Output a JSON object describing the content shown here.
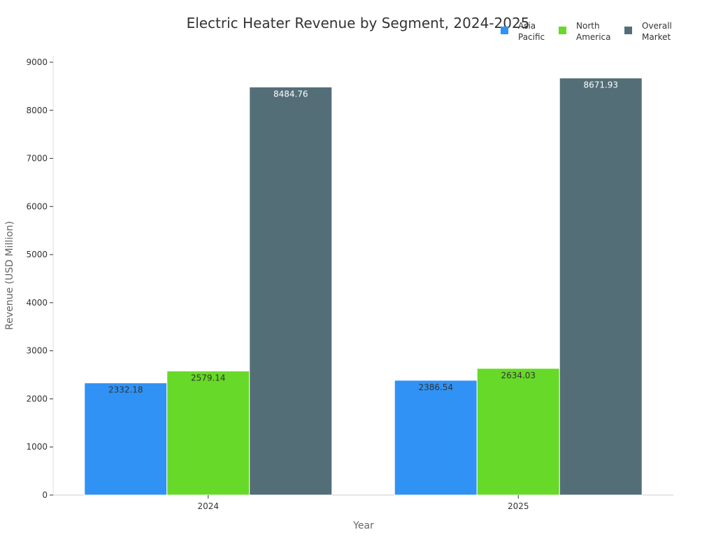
{
  "chart_data": {
    "type": "bar",
    "title": "Electric Heater Revenue by Segment, 2024-2025",
    "xlabel": "Year",
    "ylabel": "Revenue (USD Million)",
    "categories": [
      "2024",
      "2025"
    ],
    "ylim": [
      0,
      9000
    ],
    "yticks": [
      0,
      1000,
      2000,
      3000,
      4000,
      5000,
      6000,
      7000,
      8000,
      9000
    ],
    "legend_position": "top-right",
    "grid": false,
    "series": [
      {
        "name": "Asia Pacific",
        "legend_lines": [
          "Asia",
          "Pacific"
        ],
        "color": "#3092f5",
        "label_color": "#333333",
        "values": [
          2332.18,
          2386.54
        ]
      },
      {
        "name": "North America",
        "legend_lines": [
          "North",
          "America"
        ],
        "color": "#67d928",
        "label_color": "#333333",
        "values": [
          2579.14,
          2634.03
        ]
      },
      {
        "name": "Overall Market",
        "legend_lines": [
          "Overall",
          "Market"
        ],
        "color": "#546e78",
        "label_color": "#ffffff",
        "values": [
          8484.76,
          8671.93
        ]
      }
    ]
  }
}
